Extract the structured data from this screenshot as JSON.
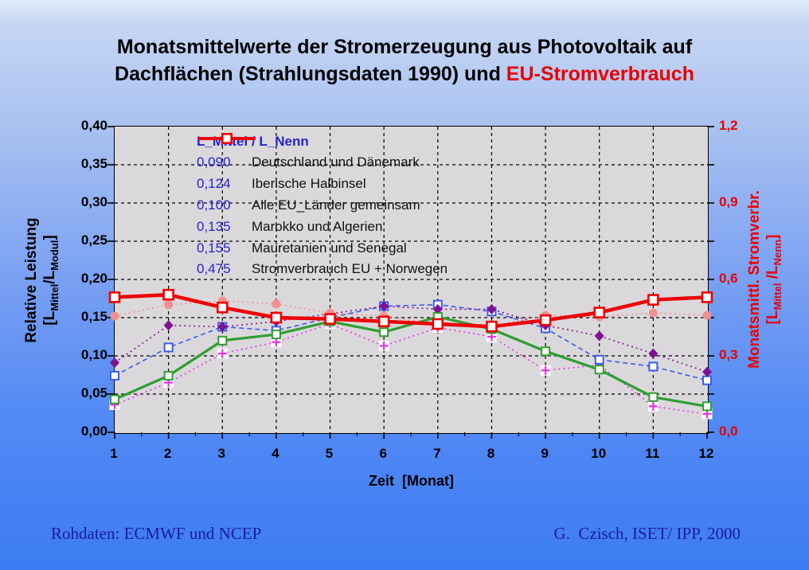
{
  "title": {
    "line1": "Monatsmittelwerte der Stromerzeugung aus Photovoltaik auf",
    "line2_black": "Dachflächen (Strahlungsdaten 1990) und ",
    "line2_red": "EU-Stromverbrauch"
  },
  "footer": {
    "left": "Rohdaten: ECMWF und NCEP",
    "right": "G.  Czisch, ISET/ IPP, 2000"
  },
  "colors": {
    "title_red": "#e90000",
    "legend_blue": "#2424cc",
    "footer_blue": "#1b1b9e",
    "plot_background": "#dbd8db",
    "gridline": "#000000"
  },
  "chart_data": {
    "type": "line",
    "x": [
      1,
      2,
      3,
      4,
      5,
      6,
      7,
      8,
      9,
      10,
      11,
      12
    ],
    "x_tick_labels": [
      "1",
      "2",
      "3",
      "4",
      "5",
      "6",
      "7",
      "8",
      "9",
      "10",
      "11",
      "12"
    ],
    "xlabel": "Zeit  [Monat]",
    "grid": true,
    "legend_position": "top-left-inside",
    "left_axis": {
      "title_line1": "Relative Leistung",
      "title_bracket": {
        "pre": "[L",
        "sub1": "Mittel",
        "mid": "/L",
        "sub2": "Modul",
        "post": "]"
      },
      "tick_labels": [
        "0,40",
        "0,35",
        "0,30",
        "0,25",
        "0,20",
        "0,15",
        "0,10",
        "0,05",
        "0,00"
      ],
      "range": [
        0,
        0.4
      ],
      "step": 0.05
    },
    "right_axis": {
      "title_line1": "Monatsmittl. Stromverbr.",
      "title_bracket": {
        "pre": "[L",
        "sub1": "Mittel",
        "mid": " /L",
        "sub2": "Nenn",
        "post": "]"
      },
      "tick_labels": [
        "1,2",
        "0,9",
        "0,6",
        "0,3",
        "0,0"
      ],
      "range": [
        0,
        1.2
      ],
      "step": 0.3
    },
    "legend_header": "L_Mittel / L_Nenn",
    "series": [
      {
        "id": "deutschland",
        "name": "Deutschland und Dänemark",
        "axis": "left",
        "mean_label": "0,090",
        "color": "#e632e6",
        "line": "dotted",
        "width": 1.6,
        "marker": "plus",
        "values": [
          0.036,
          0.065,
          0.103,
          0.118,
          0.142,
          0.113,
          0.137,
          0.125,
          0.081,
          0.088,
          0.034,
          0.024
        ]
      },
      {
        "id": "iberische",
        "name": "Iberische Halbinsel",
        "axis": "left",
        "mean_label": "0,124",
        "color": "#3b5ce8",
        "line": "dashed",
        "width": 1.6,
        "marker": "square-open",
        "values": [
          0.074,
          0.111,
          0.138,
          0.133,
          0.15,
          0.165,
          0.167,
          0.158,
          0.136,
          0.095,
          0.086,
          0.068
        ]
      },
      {
        "id": "alle-eu",
        "name": "Alle EU_Länder gemeinsam",
        "axis": "left",
        "mean_label": "0,100",
        "color": "#2f9e32",
        "line": "solid",
        "width": 3.2,
        "marker": "square-open",
        "values": [
          0.043,
          0.074,
          0.12,
          0.128,
          0.145,
          0.131,
          0.151,
          0.135,
          0.106,
          0.082,
          0.046,
          0.034
        ]
      },
      {
        "id": "marokko",
        "name": "Marokko und Algerien",
        "axis": "left",
        "mean_label": "0,135",
        "color": "#7d1391",
        "line": "dotted",
        "width": 1.6,
        "marker": "diamond",
        "values": [
          0.091,
          0.14,
          0.138,
          0.145,
          0.155,
          0.165,
          0.161,
          0.161,
          0.14,
          0.126,
          0.103,
          0.079
        ]
      },
      {
        "id": "mauretanien",
        "name": "Mauretanien und Senegal",
        "axis": "left",
        "mean_label": "0,155",
        "color": "#f09090",
        "line": "dotted",
        "width": 1.6,
        "marker": "circle",
        "values": [
          0.152,
          0.167,
          0.172,
          0.168,
          0.156,
          0.152,
          0.141,
          0.139,
          0.153,
          0.151,
          0.156,
          0.153
        ]
      },
      {
        "id": "stromverbrauch",
        "name": "Stromverbrauch EU + Norwegen",
        "axis": "right",
        "mean_label": "0,475",
        "color": "#ee0000",
        "line": "solid",
        "width": 4.5,
        "marker": "square-open-big",
        "values": [
          0.53,
          0.54,
          0.49,
          0.45,
          0.445,
          0.435,
          0.425,
          0.415,
          0.44,
          0.47,
          0.52,
          0.53
        ]
      }
    ]
  }
}
